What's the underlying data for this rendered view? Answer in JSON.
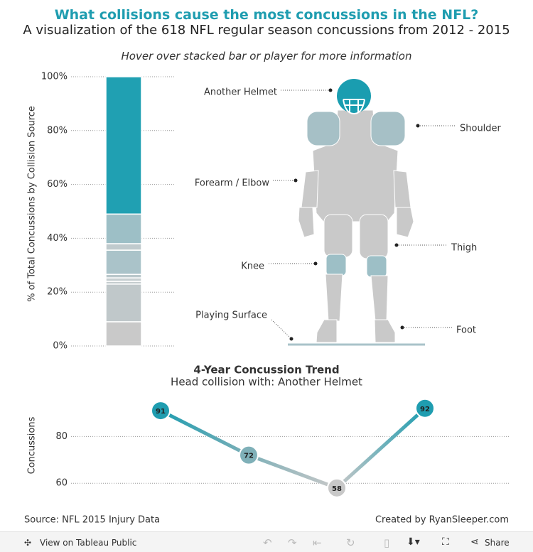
{
  "header": {
    "title": "What collisions cause the most concussions in the NFL?",
    "subtitle": "A visualization of the 618 NFL regular season concussions from 2012 - 2015",
    "instruction": "Hover over stacked bar or player for more information"
  },
  "chart_data": [
    {
      "type": "stacked-bar",
      "y_label": "% of Total Concussions by Collision Source",
      "categories": [
        null
      ],
      "series": [
        {
          "color": "#c9c9c9",
          "values": [
            9
          ]
        },
        {
          "color": "#c0c8ca",
          "values": [
            14
          ]
        },
        {
          "color": "#c4ccce",
          "values": [
            1
          ]
        },
        {
          "color": "#c6ced0",
          "values": [
            1.3
          ]
        },
        {
          "color": "#bac8cb",
          "values": [
            1.3
          ]
        },
        {
          "color": "#aac3c9",
          "values": [
            9
          ]
        },
        {
          "color": "#c0cacd",
          "values": [
            2.4
          ]
        },
        {
          "color": "#9dbfc6",
          "values": [
            11
          ]
        },
        {
          "color": "#20a0b2",
          "values": [
            51
          ]
        }
      ],
      "ylim": [
        0,
        100
      ],
      "yticks": [
        {
          "value": 0,
          "label": "0%"
        },
        {
          "value": 20,
          "label": "20%"
        },
        {
          "value": 40,
          "label": "40%"
        },
        {
          "value": 60,
          "label": "60%"
        },
        {
          "value": 80,
          "label": "80%"
        },
        {
          "value": 100,
          "label": "100%"
        }
      ],
      "grid": true
    },
    {
      "type": "line",
      "title": "4-Year Concussion Trend",
      "subtitle": "Head collision with: Another Helmet",
      "y_label": "Concussions",
      "categories": [
        null,
        null,
        null,
        null
      ],
      "values": [
        91,
        72,
        58,
        92
      ],
      "point_colors": [
        "#1f9db0",
        "#7fb0b8",
        "#c8c8c8",
        "#1f9db0"
      ],
      "ylim": [
        54,
        98
      ],
      "yticks": [
        60,
        80
      ],
      "grid": true
    }
  ],
  "player": {
    "labels": [
      "Another Helmet",
      "Shoulder",
      "Forearm / Elbow",
      "Thigh",
      "Knee",
      "Playing Surface",
      "Foot"
    ]
  },
  "footer": {
    "source": "Source: NFL 2015 Injury Data",
    "credit": "Created by RyanSleeper.com"
  },
  "toolbar": {
    "view": "View on Tableau Public",
    "share": "Share"
  }
}
